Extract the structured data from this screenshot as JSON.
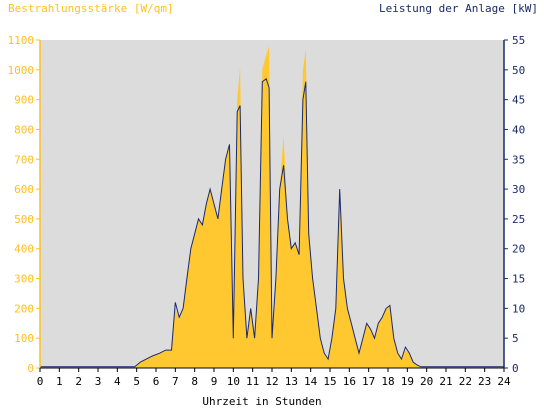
{
  "chart_data": {
    "type": "area",
    "ylabel_left": "Bestrahlungsstärke [W/qm]",
    "ylabel_right": "Leistung der Anlage [kW]",
    "xlabel": "Uhrzeit in Stunden",
    "xlim": [
      0,
      24
    ],
    "ylim_left": [
      0,
      1100
    ],
    "ylim_right": [
      0,
      55
    ],
    "x_ticks": [
      "0",
      "1",
      "2",
      "3",
      "4",
      "5",
      "6",
      "7",
      "8",
      "9",
      "10",
      "11",
      "12",
      "13",
      "14",
      "15",
      "16",
      "17",
      "18",
      "19",
      "20",
      "21",
      "22",
      "23",
      "24"
    ],
    "y_ticks_left": [
      "0",
      "100",
      "200",
      "300",
      "400",
      "500",
      "600",
      "700",
      "800",
      "900",
      "1000",
      "1100"
    ],
    "y_ticks_right": [
      "0",
      "5",
      "10",
      "15",
      "20",
      "25",
      "30",
      "35",
      "40",
      "45",
      "50",
      "55"
    ],
    "grid": false,
    "colors": {
      "irradiance": "#ffc830",
      "power": "#1a2a6c",
      "plot_bg": "#dcdcdc",
      "left_axis": "#ffc020",
      "right_axis": "#1a2a6c"
    },
    "series": [
      {
        "name": "Bestrahlungsstärke [W/qm]",
        "axis": "left",
        "x": [
          0,
          4.9,
          5.2,
          5.5,
          5.8,
          6.2,
          6.5,
          6.8,
          7.0,
          7.2,
          7.4,
          7.6,
          7.8,
          8.0,
          8.2,
          8.4,
          8.6,
          8.8,
          9.0,
          9.2,
          9.4,
          9.6,
          9.8,
          10.0,
          10.2,
          10.35,
          10.5,
          10.7,
          10.9,
          11.1,
          11.3,
          11.5,
          11.7,
          11.85,
          12.0,
          12.2,
          12.4,
          12.6,
          12.8,
          13.0,
          13.2,
          13.4,
          13.6,
          13.75,
          13.9,
          14.1,
          14.3,
          14.5,
          14.7,
          14.9,
          15.1,
          15.3,
          15.5,
          15.7,
          15.9,
          16.1,
          16.3,
          16.5,
          16.7,
          16.9,
          17.1,
          17.3,
          17.5,
          17.7,
          17.9,
          18.1,
          18.3,
          18.5,
          18.7,
          18.9,
          19.1,
          19.3,
          19.5,
          19.7,
          20.0,
          20.3,
          24
        ],
        "y": [
          0,
          0,
          20,
          30,
          40,
          50,
          60,
          60,
          200,
          160,
          200,
          300,
          400,
          450,
          500,
          480,
          550,
          600,
          550,
          500,
          600,
          700,
          750,
          100,
          900,
          1010,
          300,
          100,
          200,
          100,
          300,
          1000,
          1050,
          1080,
          100,
          300,
          600,
          780,
          500,
          400,
          420,
          380,
          1000,
          1070,
          450,
          300,
          200,
          100,
          50,
          30,
          100,
          200,
          600,
          300,
          200,
          150,
          100,
          50,
          100,
          150,
          130,
          100,
          150,
          170,
          200,
          210,
          100,
          50,
          30,
          60,
          50,
          20,
          10,
          0,
          0,
          0,
          0
        ]
      },
      {
        "name": "Leistung der Anlage [kW]",
        "axis": "right",
        "x": [
          0,
          4.9,
          5.2,
          5.5,
          5.8,
          6.2,
          6.5,
          6.8,
          7.0,
          7.2,
          7.4,
          7.6,
          7.8,
          8.0,
          8.2,
          8.4,
          8.6,
          8.8,
          9.0,
          9.2,
          9.4,
          9.6,
          9.8,
          10.0,
          10.2,
          10.35,
          10.5,
          10.7,
          10.9,
          11.1,
          11.3,
          11.5,
          11.7,
          11.85,
          12.0,
          12.2,
          12.4,
          12.6,
          12.8,
          13.0,
          13.2,
          13.4,
          13.6,
          13.75,
          13.9,
          14.1,
          14.3,
          14.5,
          14.7,
          14.9,
          15.1,
          15.3,
          15.5,
          15.7,
          15.9,
          16.1,
          16.3,
          16.5,
          16.7,
          16.9,
          17.1,
          17.3,
          17.5,
          17.7,
          17.9,
          18.1,
          18.3,
          18.5,
          18.7,
          18.9,
          19.1,
          19.3,
          19.5,
          19.7,
          20.0,
          20.3,
          24
        ],
        "y": [
          0.2,
          0.2,
          1,
          1.5,
          2,
          2.5,
          3,
          3,
          11,
          8.5,
          10,
          15,
          20,
          22.5,
          25,
          24,
          27.5,
          30,
          27.5,
          25,
          30,
          35,
          37.5,
          5,
          43,
          44,
          15,
          5,
          10,
          5,
          15,
          48,
          48.5,
          47,
          5,
          15,
          30,
          34,
          25,
          20,
          21,
          19,
          45,
          48,
          22.5,
          15,
          10,
          5,
          2.5,
          1.5,
          5,
          10,
          30,
          15,
          10,
          7.5,
          5,
          2.5,
          5,
          7.5,
          6.5,
          5,
          7.5,
          8.5,
          10,
          10.5,
          5,
          2.5,
          1.5,
          3.5,
          2.5,
          1,
          0.5,
          0.2,
          0.2,
          0.2,
          0.2
        ]
      }
    ]
  }
}
